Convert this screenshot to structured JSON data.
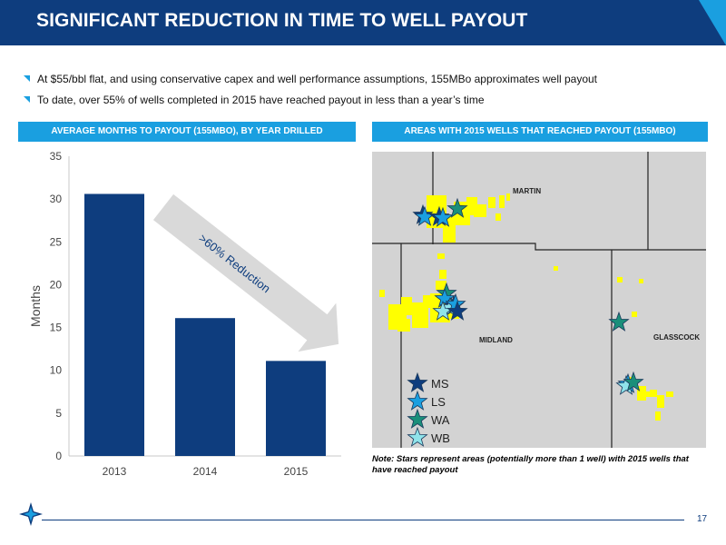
{
  "header": {
    "title": "SIGNIFICANT REDUCTION IN TIME TO WELL PAYOUT"
  },
  "bullets": [
    "At $55/bbl flat, and using conservative capex and well performance assumptions, 155MBo approximates well payout",
    "To date, over 55% of wells completed in 2015 have reached payout in less than a year’s time"
  ],
  "left_panel": {
    "header": "AVERAGE MONTHS TO PAYOUT (155MBO), BY YEAR DRILLED"
  },
  "right_panel": {
    "header": "AREAS WITH 2015 WELLS THAT REACHED PAYOUT (155MBO)",
    "counties": {
      "martin": "MARTIN",
      "midland": "MIDLAND",
      "glasscock": "GLASSCOCK"
    },
    "legend": [
      {
        "label": "MS",
        "color": "#0e3d7e"
      },
      {
        "label": "LS",
        "color": "#1a9fe0"
      },
      {
        "label": "WA",
        "color": "#1a8f7a"
      },
      {
        "label": "WB",
        "color": "#8fe3ea"
      }
    ],
    "note": "Note: Stars represent areas (potentially more than 1 well) with 2015 wells that have reached payout"
  },
  "chart_data": {
    "type": "bar",
    "categories": [
      "2013",
      "2014",
      "2015"
    ],
    "values": [
      30.6,
      16.1,
      11.1
    ],
    "ylabel": "Months",
    "ylim": [
      0,
      35
    ],
    "yticks": [
      0,
      5,
      10,
      15,
      20,
      25,
      30,
      35
    ],
    "annotation": ">60% Reduction",
    "colors": {
      "bar": "#0e3d7e",
      "arrow": "#d9d9d9"
    }
  },
  "footer": {
    "page_number": "17"
  },
  "colors": {
    "title_bg": "#0e3d7e",
    "accent": "#1a9fe0",
    "map_bg": "#d3d3d3",
    "acreage": "#ffff00"
  }
}
